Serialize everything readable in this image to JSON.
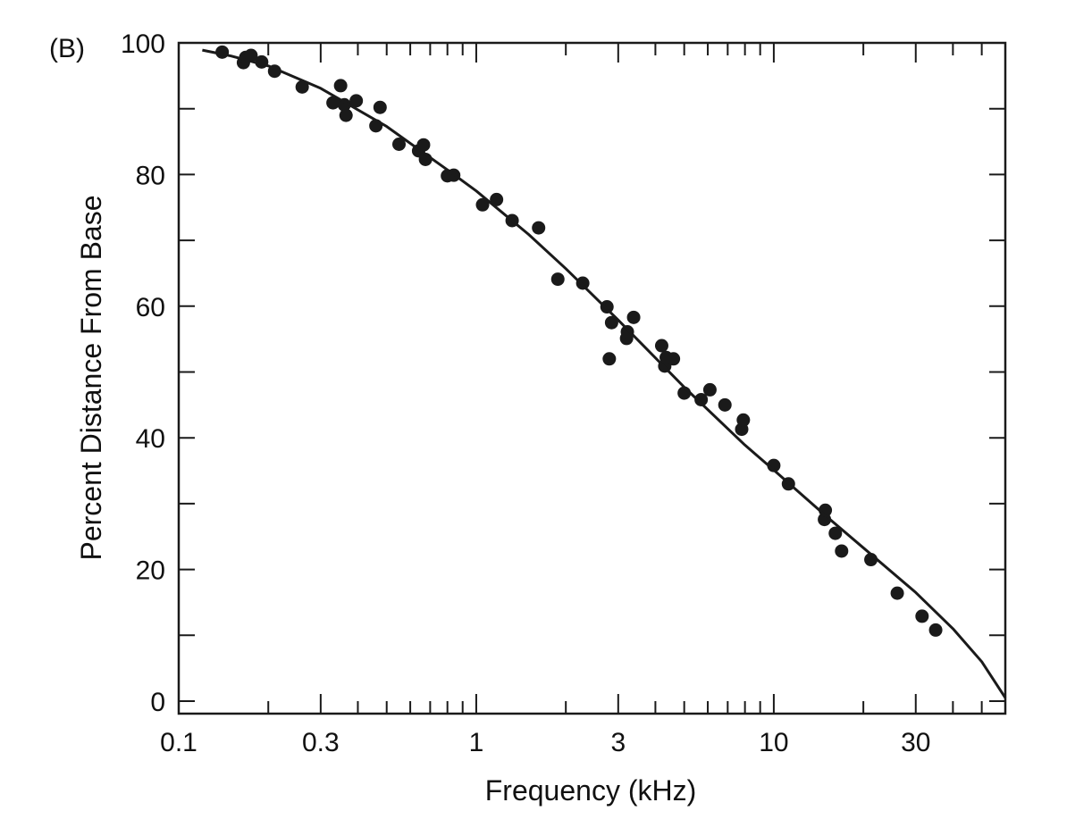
{
  "chart_data": {
    "type": "scatter",
    "panel_label": "(B)",
    "title": "",
    "xlabel": "Frequency (kHz)",
    "ylabel": "Percent Distance From Base",
    "x_scale": "log",
    "xlim": [
      0.1,
      60
    ],
    "ylim": [
      0,
      100
    ],
    "x_ticks": [
      {
        "value": 0.1,
        "label": "0.1"
      },
      {
        "value": 0.3,
        "label": "0.3"
      },
      {
        "value": 1,
        "label": "1"
      },
      {
        "value": 3,
        "label": "3"
      },
      {
        "value": 10,
        "label": "10"
      },
      {
        "value": 30,
        "label": "30"
      }
    ],
    "y_ticks": [
      {
        "value": 0,
        "label": "0"
      },
      {
        "value": 20,
        "label": "20"
      },
      {
        "value": 40,
        "label": "40"
      },
      {
        "value": 60,
        "label": "60"
      },
      {
        "value": 80,
        "label": "80"
      },
      {
        "value": 100,
        "label": "100"
      }
    ],
    "grid": false,
    "color": "#1a1a1a",
    "series": [
      {
        "kind": "points",
        "points": [
          [
            0.14,
            98.6
          ],
          [
            0.165,
            97.0
          ],
          [
            0.168,
            97.8
          ],
          [
            0.175,
            98.1
          ],
          [
            0.19,
            97.1
          ],
          [
            0.21,
            95.7
          ],
          [
            0.26,
            93.3
          ],
          [
            0.33,
            90.9
          ],
          [
            0.35,
            93.5
          ],
          [
            0.36,
            90.6
          ],
          [
            0.365,
            89.0
          ],
          [
            0.395,
            91.2
          ],
          [
            0.46,
            87.4
          ],
          [
            0.475,
            90.2
          ],
          [
            0.55,
            84.6
          ],
          [
            0.64,
            83.6
          ],
          [
            0.665,
            84.5
          ],
          [
            0.675,
            82.3
          ],
          [
            0.8,
            79.8
          ],
          [
            0.84,
            79.9
          ],
          [
            1.05,
            75.4
          ],
          [
            1.17,
            76.2
          ],
          [
            1.32,
            73.0
          ],
          [
            1.62,
            71.9
          ],
          [
            1.88,
            64.1
          ],
          [
            2.28,
            63.5
          ],
          [
            2.75,
            59.9
          ],
          [
            2.8,
            52.0
          ],
          [
            2.85,
            57.5
          ],
          [
            3.2,
            55.1
          ],
          [
            3.22,
            56.1
          ],
          [
            3.38,
            58.3
          ],
          [
            4.2,
            54.0
          ],
          [
            4.3,
            50.9
          ],
          [
            4.35,
            52.2
          ],
          [
            4.6,
            52.0
          ],
          [
            5.0,
            46.8
          ],
          [
            5.7,
            45.8
          ],
          [
            6.1,
            47.3
          ],
          [
            6.85,
            45.0
          ],
          [
            7.8,
            41.3
          ],
          [
            7.9,
            42.7
          ],
          [
            10.0,
            35.8
          ],
          [
            11.2,
            33.0
          ],
          [
            14.8,
            27.6
          ],
          [
            14.9,
            29.0
          ],
          [
            16.1,
            25.5
          ],
          [
            16.9,
            22.8
          ],
          [
            21.2,
            21.5
          ],
          [
            26.0,
            16.4
          ],
          [
            31.5,
            12.9
          ],
          [
            35.0,
            10.8
          ]
        ]
      },
      {
        "kind": "fit-line",
        "points": [
          [
            0.12,
            98.9
          ],
          [
            0.15,
            98.0
          ],
          [
            0.2,
            96.5
          ],
          [
            0.3,
            93.1
          ],
          [
            0.5,
            87.3
          ],
          [
            0.8,
            80.7
          ],
          [
            1,
            77.5
          ],
          [
            1.5,
            70.9
          ],
          [
            2,
            65.7
          ],
          [
            3,
            57.9
          ],
          [
            5,
            47.7
          ],
          [
            8,
            38.9
          ],
          [
            10,
            35.1
          ],
          [
            15,
            28.1
          ],
          [
            20,
            23.3
          ],
          [
            30,
            16.5
          ],
          [
            40,
            11.0
          ],
          [
            50,
            6.0
          ],
          [
            60,
            0.5
          ]
        ]
      }
    ]
  }
}
